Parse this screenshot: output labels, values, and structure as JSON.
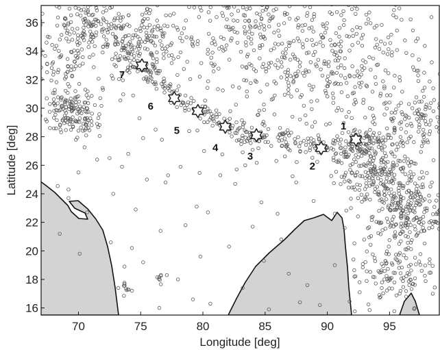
{
  "figure": {
    "xlabel": "Longitude [deg]",
    "ylabel": "Latitude [deg]",
    "xlim": [
      67,
      99
    ],
    "ylim": [
      15.5,
      37.2
    ],
    "xticks": [
      70,
      75,
      80,
      85,
      90,
      95
    ],
    "yticks": [
      16,
      18,
      20,
      22,
      24,
      26,
      28,
      30,
      32,
      34,
      36
    ],
    "land_color": "#d3d3d3",
    "symbol_color": "#555555"
  },
  "chart_data": {
    "type": "scatter",
    "xlabel": "Longitude [deg]",
    "ylabel": "Latitude [deg]",
    "xlim": [
      67,
      99
    ],
    "ylim": [
      15.5,
      37.2
    ],
    "grid": false,
    "stars": [
      {
        "label": "1",
        "lon": 92.3,
        "lat": 27.8,
        "label_lon": 91.3,
        "label_lat": 28.7
      },
      {
        "label": "2",
        "lon": 89.5,
        "lat": 27.2,
        "label_lon": 88.8,
        "label_lat": 25.9
      },
      {
        "label": "3",
        "lon": 84.3,
        "lat": 28.1,
        "label_lon": 83.8,
        "label_lat": 26.6
      },
      {
        "label": "4",
        "lon": 81.8,
        "lat": 28.7,
        "label_lon": 81.0,
        "label_lat": 27.2
      },
      {
        "label": "5",
        "lon": 79.6,
        "lat": 29.8,
        "label_lon": 77.9,
        "label_lat": 28.4
      },
      {
        "label": "6",
        "lon": 77.7,
        "lat": 30.7,
        "label_lon": 75.8,
        "label_lat": 30.1
      },
      {
        "label": "7",
        "lon": 75.1,
        "lat": 33.0,
        "label_lon": 73.5,
        "label_lat": 32.3
      }
    ],
    "seismicity_clusters": [
      {
        "lon": 69.5,
        "lat": 29.8,
        "spread": 1.2,
        "count": 160
      },
      {
        "lon": 71.0,
        "lat": 35.8,
        "spread": 1.8,
        "count": 200
      },
      {
        "lon": 75.5,
        "lat": 35.2,
        "spread": 1.6,
        "count": 110
      },
      {
        "lon": 67.8,
        "lat": 33.0,
        "spread": 1.3,
        "count": 60
      },
      {
        "lon": 73.8,
        "lat": 33.6,
        "spread": 1.0,
        "count": 50
      },
      {
        "lon": 94.0,
        "lat": 26.0,
        "spread": 1.6,
        "count": 260
      },
      {
        "lon": 96.5,
        "lat": 22.5,
        "spread": 1.6,
        "count": 220
      },
      {
        "lon": 95.5,
        "lat": 18.5,
        "spread": 1.5,
        "count": 120
      },
      {
        "lon": 97.5,
        "lat": 29.5,
        "spread": 1.5,
        "count": 110
      },
      {
        "lon": 92.0,
        "lat": 32.0,
        "spread": 3.0,
        "count": 150
      },
      {
        "lon": 84.0,
        "lat": 33.5,
        "spread": 4.0,
        "count": 230
      },
      {
        "lon": 89.0,
        "lat": 35.0,
        "spread": 4.0,
        "count": 200
      },
      {
        "lon": 81.0,
        "lat": 36.0,
        "spread": 2.5,
        "count": 70
      }
    ],
    "belt": {
      "count": 260,
      "path": [
        [
          74.5,
          33.4
        ],
        [
          76.5,
          31.8
        ],
        [
          78.5,
          30.3
        ],
        [
          80.5,
          29.4
        ],
        [
          82.5,
          28.6
        ],
        [
          84.5,
          28.0
        ],
        [
          86.5,
          27.7
        ],
        [
          88.5,
          27.4
        ],
        [
          90.5,
          27.2
        ],
        [
          92.5,
          27.6
        ],
        [
          94.0,
          27.6
        ]
      ]
    },
    "sparse_points": [
      [
        71.5,
        28.9
      ],
      [
        72.5,
        26.5
      ],
      [
        70.0,
        25.5
      ],
      [
        72.8,
        24.0
      ],
      [
        74.0,
        26.8
      ],
      [
        75.5,
        25.0
      ],
      [
        76.2,
        28.5
      ],
      [
        77.0,
        24.8
      ],
      [
        78.2,
        25.9
      ],
      [
        79.5,
        23.1
      ],
      [
        80.1,
        27.0
      ],
      [
        74.6,
        22.9
      ],
      [
        76.6,
        21.4
      ],
      [
        78.6,
        21.8
      ],
      [
        80.4,
        22.7
      ],
      [
        82.6,
        24.7
      ],
      [
        84.7,
        23.4
      ],
      [
        82.1,
        20.3
      ],
      [
        79.8,
        19.6
      ],
      [
        78.0,
        18.0
      ],
      [
        77.1,
        18.3
      ],
      [
        79.2,
        16.6
      ],
      [
        76.5,
        16.0
      ],
      [
        83.2,
        17.4
      ],
      [
        86.3,
        20.8
      ],
      [
        86.9,
        18.4
      ],
      [
        88.4,
        17.6
      ],
      [
        87.8,
        16.4
      ],
      [
        85.3,
        15.9
      ],
      [
        84.0,
        21.7
      ],
      [
        88.9,
        23.5
      ],
      [
        87.5,
        24.8
      ],
      [
        91.4,
        21.6
      ],
      [
        90.6,
        19.0
      ],
      [
        89.4,
        16.2
      ],
      [
        92.6,
        17.1
      ],
      [
        73.2,
        17.4
      ],
      [
        73.7,
        18.9
      ],
      [
        72.6,
        20.6
      ],
      [
        74.3,
        20.2
      ],
      [
        75.2,
        19.2
      ],
      [
        80.6,
        16.3
      ],
      [
        84.9,
        19.3
      ],
      [
        86.0,
        22.6
      ],
      [
        81.4,
        25.3
      ],
      [
        83.4,
        26.0
      ],
      [
        85.9,
        26.3
      ],
      [
        69.2,
        24.3
      ],
      [
        70.7,
        22.7
      ],
      [
        68.5,
        21.2
      ],
      [
        70.1,
        19.8
      ],
      [
        69.2,
        23.7
      ],
      [
        77.2,
        25.3
      ],
      [
        78.9,
        28.4
      ],
      [
        75.2,
        27.9
      ],
      [
        73.5,
        25.9
      ],
      [
        71.5,
        26.4
      ],
      [
        90.6,
        22.6
      ],
      [
        92.1,
        19.4
      ],
      [
        91.9,
        23.0
      ]
    ],
    "ocean_clusters": [
      {
        "lon": 73.9,
        "lat": 17.3,
        "spread": 0.25,
        "count": 10
      },
      {
        "lon": 76.8,
        "lat": 18.1,
        "spread": 0.2,
        "count": 7
      }
    ]
  }
}
